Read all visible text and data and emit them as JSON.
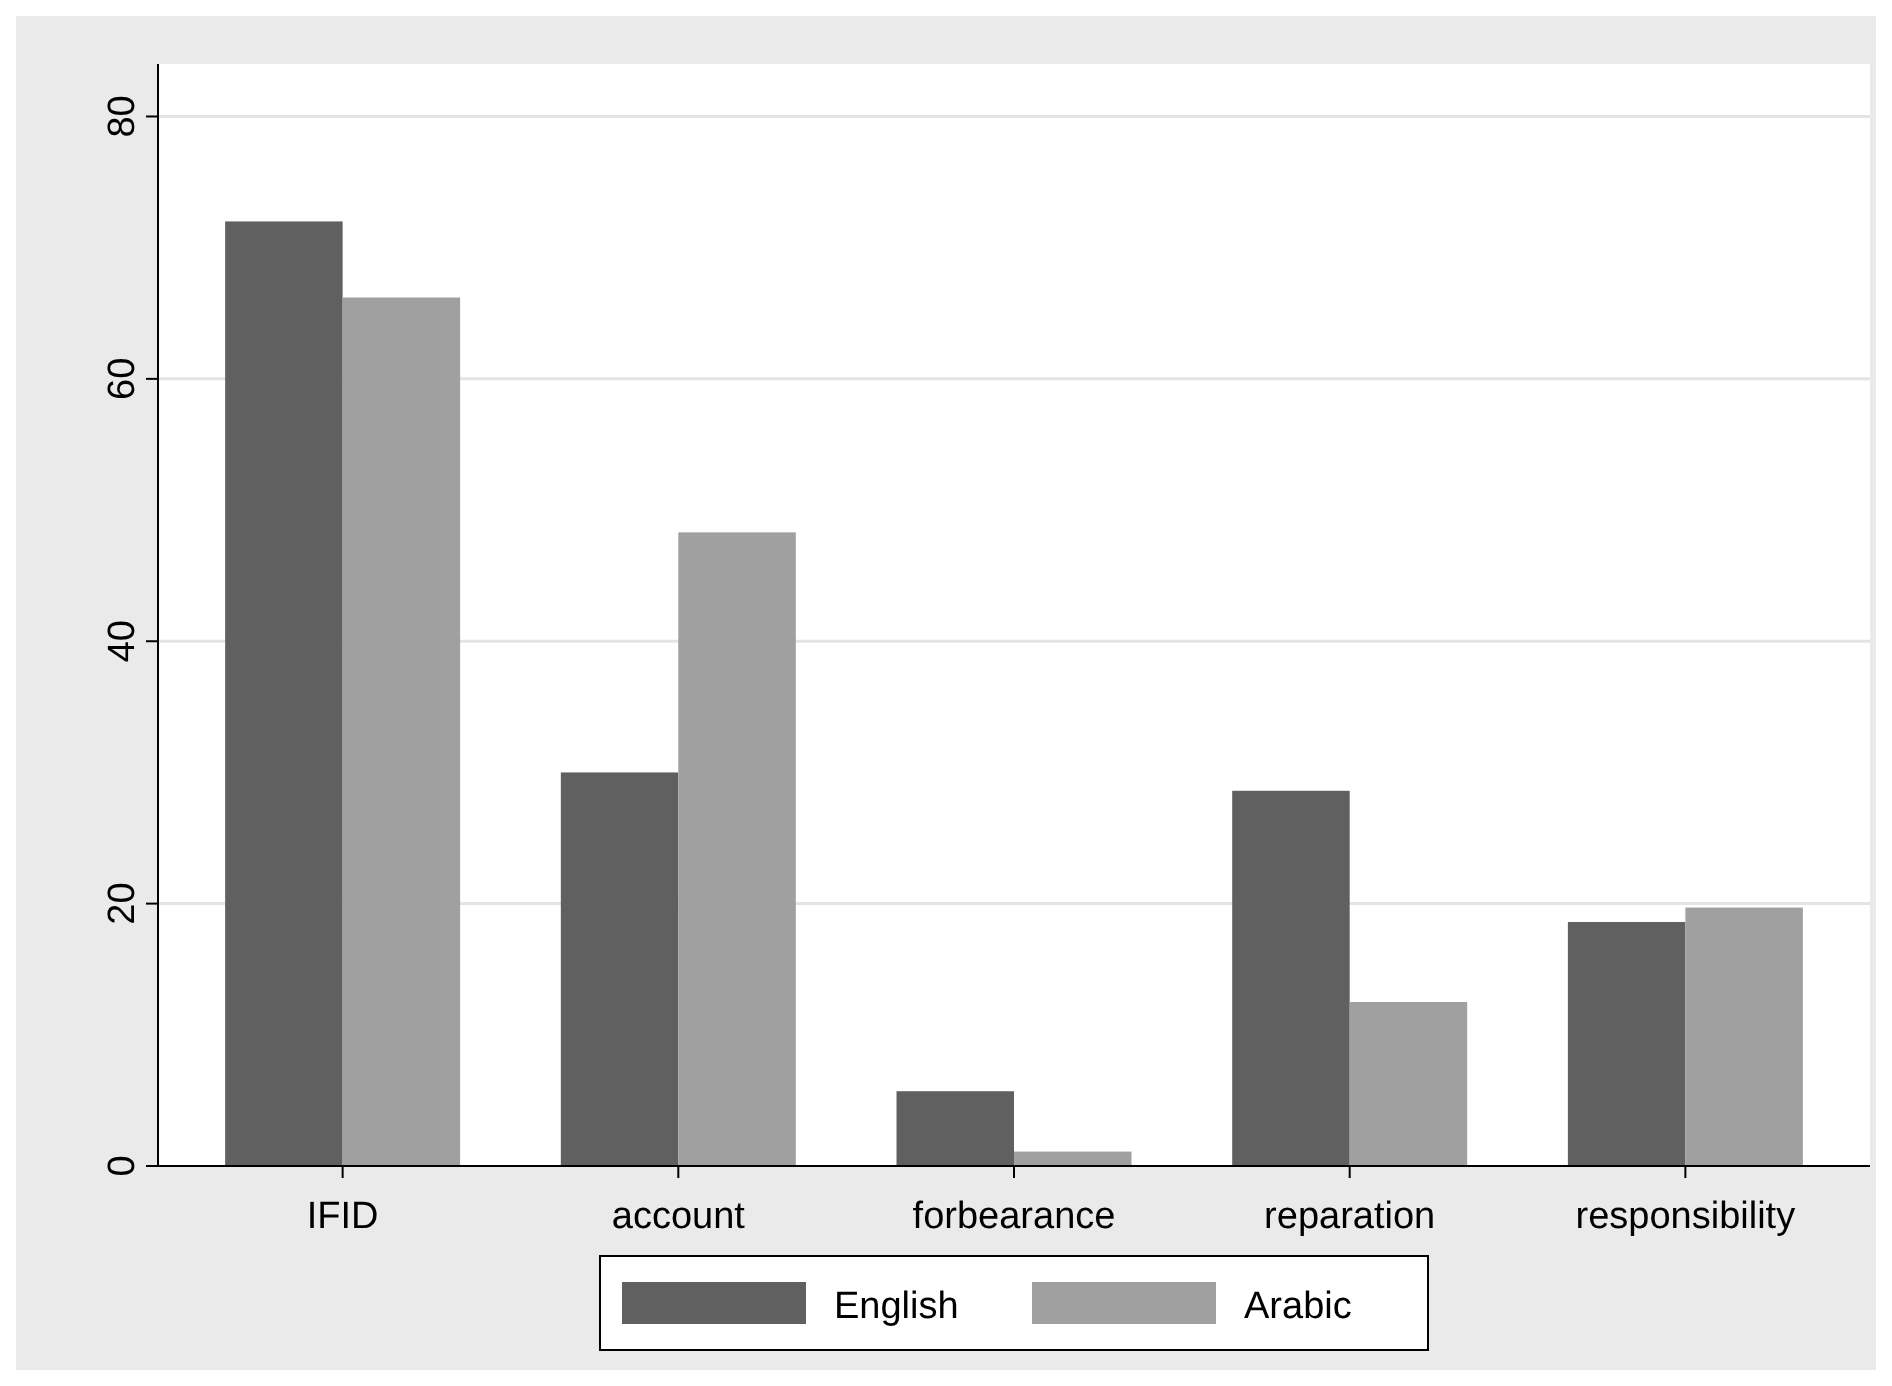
{
  "chart_data": {
    "type": "bar",
    "categories": [
      "IFID",
      "account",
      "forbearance",
      "reparation",
      "responsibility"
    ],
    "series": [
      {
        "name": "English",
        "color": "#606060",
        "values": [
          72,
          30,
          5.7,
          28.6,
          18.6
        ]
      },
      {
        "name": "Arabic",
        "color": "#a0a0a0",
        "values": [
          66.2,
          48.3,
          1.1,
          12.5,
          19.7
        ]
      }
    ],
    "ylim": [
      0,
      84
    ],
    "yticks": [
      0,
      20,
      40,
      60,
      80
    ],
    "grid": "y",
    "legend": "bottom"
  }
}
